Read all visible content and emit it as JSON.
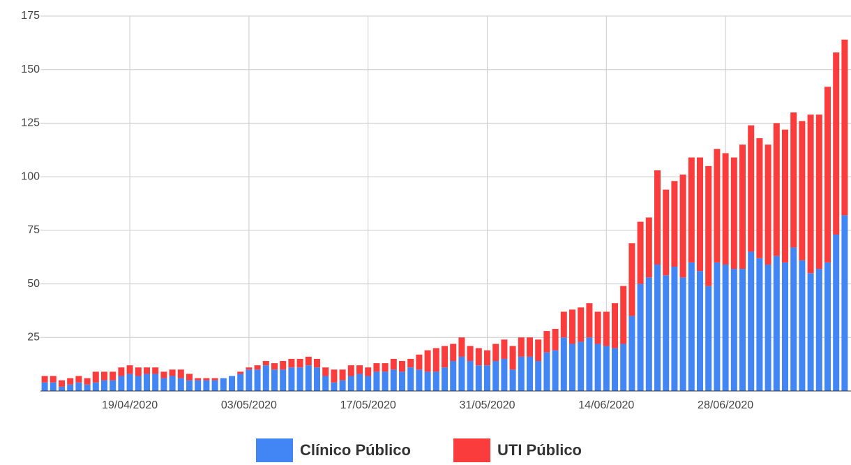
{
  "chart_data": {
    "type": "stacked_bar",
    "categories": [
      null,
      null,
      null,
      null,
      null,
      null,
      null,
      null,
      null,
      null,
      "19/04/2020",
      null,
      null,
      null,
      null,
      null,
      null,
      null,
      null,
      null,
      null,
      null,
      null,
      null,
      "03/05/2020",
      null,
      null,
      null,
      null,
      null,
      null,
      null,
      null,
      null,
      null,
      null,
      null,
      null,
      "17/05/2020",
      null,
      null,
      null,
      null,
      null,
      null,
      null,
      null,
      null,
      null,
      null,
      null,
      null,
      "31/05/2020",
      null,
      null,
      null,
      null,
      null,
      null,
      null,
      null,
      null,
      null,
      null,
      null,
      null,
      "14/06/2020",
      null,
      null,
      null,
      null,
      null,
      null,
      null,
      null,
      null,
      null,
      null,
      null,
      null,
      "28/06/2020",
      null,
      null,
      null,
      null,
      null,
      null,
      null,
      null,
      null,
      null,
      null,
      null,
      null,
      null
    ],
    "series": [
      {
        "name": "Clínico Público",
        "color": "#4285f4",
        "values": [
          4,
          4,
          2,
          3,
          4,
          3,
          4,
          5,
          5,
          7,
          8,
          7,
          8,
          8,
          6,
          7,
          6,
          5,
          5,
          5,
          5,
          6,
          7,
          8,
          10,
          10,
          12,
          10,
          10,
          11,
          11,
          12,
          11,
          7,
          4,
          5,
          7,
          8,
          7,
          9,
          9,
          10,
          9,
          11,
          10,
          9,
          9,
          11,
          14,
          16,
          14,
          12,
          12,
          14,
          15,
          10,
          16,
          16,
          14,
          18,
          19,
          25,
          22,
          23,
          25,
          22,
          21,
          20,
          22,
          35,
          50,
          53,
          59,
          54,
          58,
          53,
          60,
          56,
          49,
          60,
          59,
          57,
          57,
          65,
          62,
          59,
          63,
          60,
          67,
          61,
          55,
          57,
          60,
          73,
          82
        ]
      },
      {
        "name": "UTI Público",
        "color": "#fb3c3c",
        "values": [
          3,
          3,
          3,
          3,
          3,
          3,
          5,
          4,
          4,
          4,
          4,
          4,
          3,
          3,
          3,
          3,
          4,
          3,
          1,
          1,
          1,
          0,
          0,
          1,
          1,
          2,
          2,
          3,
          4,
          4,
          4,
          4,
          4,
          4,
          6,
          5,
          5,
          4,
          4,
          4,
          4,
          5,
          5,
          4,
          7,
          10,
          11,
          10,
          8,
          9,
          7,
          8,
          7,
          8,
          9,
          11,
          9,
          9,
          10,
          10,
          10,
          12,
          16,
          16,
          16,
          15,
          16,
          21,
          27,
          34,
          29,
          28,
          44,
          40,
          40,
          48,
          49,
          53,
          56,
          53,
          52,
          52,
          58,
          59,
          56,
          56,
          62,
          62,
          63,
          65,
          74,
          72,
          82,
          85,
          82
        ]
      }
    ],
    "ylim": [
      0,
      175
    ],
    "yticks": [
      25,
      50,
      75,
      100,
      125,
      150,
      175
    ],
    "grid": true,
    "legend": "bottom"
  }
}
